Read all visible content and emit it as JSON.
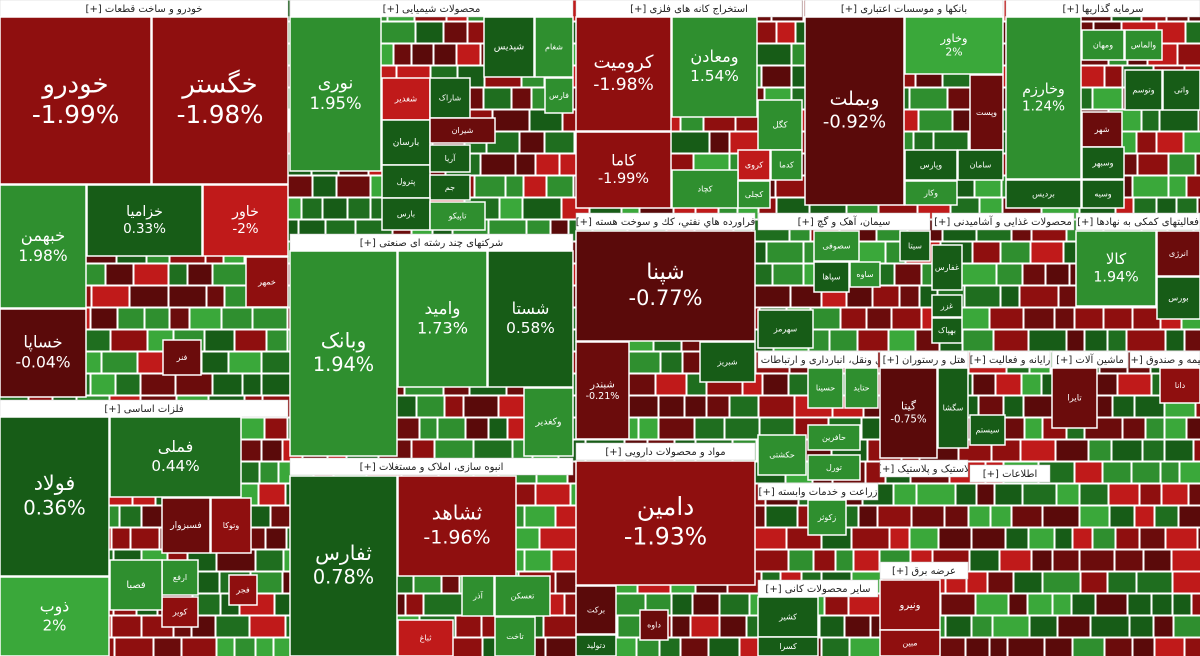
{
  "sectors": [
    {
      "title": "خودرو و ساخت قطعات [+]",
      "tiles": [
        {
          "name": "خودرو",
          "change": "-1.99%",
          "color": "#8f0f0f"
        },
        {
          "name": "خگستر",
          "change": "-1.98%",
          "color": "#8f0f0f"
        },
        {
          "name": "خبهمن",
          "change": "1.98%",
          "color": "#2f8f2f"
        },
        {
          "name": "خزامیا",
          "change": "0.33%",
          "color": "#175c17"
        },
        {
          "name": "خاور",
          "change": "-2%",
          "color": "#c01a1a"
        },
        {
          "name": "خساپا",
          "change": "-0.04%",
          "color": "#5a0a0a"
        },
        {
          "name": "خمهر",
          "color": "#8f0f0f"
        },
        {
          "name": "فنر",
          "color": "#6b0c0c"
        }
      ]
    },
    {
      "title": "فلزات اساسی [+]",
      "tiles": [
        {
          "name": "فولاد",
          "change": "0.36%",
          "color": "#175c17"
        },
        {
          "name": "فملی",
          "change": "0.44%",
          "color": "#1f6e1f"
        },
        {
          "name": "ذوب",
          "change": "2%",
          "color": "#3aa83a"
        },
        {
          "name": "فسبزوار",
          "color": "#6b0c0c"
        },
        {
          "name": "وتوکا",
          "color": "#8f0f0f"
        },
        {
          "name": "فجر",
          "color": "#8f0f0f"
        },
        {
          "name": "ارفع",
          "color": "#2f8f2f"
        },
        {
          "name": "کویر",
          "color": "#8f0f0f"
        },
        {
          "name": "فصبا",
          "color": "#2f8f2f"
        }
      ]
    },
    {
      "title": "محصولات شیمیایی [+]",
      "tiles": [
        {
          "name": "نوری",
          "change": "1.95%",
          "color": "#2f8f2f"
        },
        {
          "name": "شپدیس",
          "color": "#175c17"
        },
        {
          "name": "شغام",
          "color": "#2f8f2f"
        },
        {
          "name": "شغدیر",
          "color": "#c01a1a"
        },
        {
          "name": "شاراک",
          "color": "#175c17"
        },
        {
          "name": "فارس",
          "color": "#2f8f2f"
        },
        {
          "name": "بارسان",
          "color": "#175c17"
        },
        {
          "name": "شیران",
          "color": "#6b0c0c"
        },
        {
          "name": "پترول",
          "color": "#175c17"
        },
        {
          "name": "آریا",
          "color": "#175c17"
        },
        {
          "name": "جم",
          "color": "#175c17"
        },
        {
          "name": "بارس",
          "color": "#175c17"
        },
        {
          "name": "تاپیکو",
          "color": "#2f8f2f"
        }
      ]
    },
    {
      "title": "شرکتهای چند رشته ای صنعتی [+]",
      "tiles": [
        {
          "name": "وبانک",
          "change": "1.94%",
          "color": "#2f8f2f"
        },
        {
          "name": "وامید",
          "change": "1.73%",
          "color": "#2f8f2f"
        },
        {
          "name": "شستا",
          "change": "0.58%",
          "color": "#175c17"
        },
        {
          "name": "وکغدیر",
          "color": "#2f8f2f"
        }
      ]
    },
    {
      "title": "انبوه سازی، املاک و مستغلات [+]",
      "tiles": [
        {
          "name": "ثفارس",
          "change": "0.78%",
          "color": "#175c17"
        },
        {
          "name": "ثشاهد",
          "change": "-1.96%",
          "color": "#8f0f0f"
        },
        {
          "name": "آذر",
          "color": "#2f8f2f"
        },
        {
          "name": "تعسکن",
          "color": "#2f8f2f"
        },
        {
          "name": "تاخت",
          "color": "#2f8f2f"
        },
        {
          "name": "ثباغ",
          "color": "#c01a1a"
        }
      ]
    },
    {
      "title": "استخراج کانه های فلزی [+]",
      "tiles": [
        {
          "name": "کرومیت",
          "change": "-1.98%",
          "color": "#8f0f0f"
        },
        {
          "name": "کاما",
          "change": "-1.99%",
          "color": "#8f0f0f"
        },
        {
          "name": "ومعادن",
          "change": "1.54%",
          "color": "#2f8f2f"
        },
        {
          "name": "کگل",
          "color": "#2f8f2f"
        },
        {
          "name": "کروی",
          "color": "#c01a1a"
        },
        {
          "name": "کدما",
          "color": "#2f8f2f"
        },
        {
          "name": "کچاد",
          "color": "#2f8f2f"
        },
        {
          "name": "کجلی",
          "color": "#2f8f2f"
        }
      ]
    },
    {
      "title": "بانکها و موسسات اعتباری [+]",
      "tiles": [
        {
          "name": "وبملت",
          "change": "-0.92%",
          "color": "#5a0a0a"
        },
        {
          "name": "وخاور",
          "change": "2%",
          "color": "#3aa83a"
        },
        {
          "name": "وپست",
          "color": "#6b0c0c"
        },
        {
          "name": "وپارس",
          "color": "#175c17"
        },
        {
          "name": "سامان",
          "color": "#175c17"
        },
        {
          "name": "وکار",
          "color": "#2f8f2f"
        }
      ]
    },
    {
      "title": "سرمایه گذاریها [+]",
      "tiles": [
        {
          "name": "وخارزم",
          "change": "1.24%",
          "color": "#2f8f2f"
        },
        {
          "name": "بردیس",
          "color": "#175c17"
        },
        {
          "name": "ومهان",
          "color": "#2f8f2f"
        },
        {
          "name": "والماس",
          "color": "#2f8f2f"
        },
        {
          "name": "وتوسم",
          "color": "#175c17"
        },
        {
          "name": "واتی",
          "color": "#175c17"
        },
        {
          "name": "شهر",
          "color": "#6b0c0c"
        },
        {
          "name": "وسبهر",
          "color": "#175c17"
        },
        {
          "name": "وسیه",
          "color": "#175c17"
        }
      ]
    },
    {
      "title": "فراورده هاي نفتي، كك و سوخت هسته [+]",
      "tiles": [
        {
          "name": "شپنا",
          "change": "-0.77%",
          "color": "#5a0a0a"
        },
        {
          "name": "شبندر",
          "change": "-0.21%",
          "color": "#6b0c0c"
        },
        {
          "name": "شبریز",
          "color": "#175c17"
        }
      ]
    },
    {
      "title": "مواد و محصولات دارویی [+]",
      "tiles": [
        {
          "name": "دامین",
          "change": "-1.93%",
          "color": "#8f0f0f"
        },
        {
          "name": "برکت",
          "color": "#5a0a0a"
        },
        {
          "name": "داوه",
          "color": "#6b0c0c"
        },
        {
          "name": "دتولید",
          "color": "#175c17"
        }
      ]
    },
    {
      "title": "سیمان، آهک و گچ [+]",
      "tiles": [
        {
          "name": "سهرمز",
          "color": "#175c17"
        },
        {
          "name": "سصوفی",
          "color": "#2f8f2f"
        },
        {
          "name": "سیتا",
          "color": "#175c17"
        },
        {
          "name": "سپاها",
          "color": "#175c17"
        },
        {
          "name": "ساوه",
          "color": "#2f8f2f"
        }
      ]
    },
    {
      "title": "محصولات غذایی و آشامیدنی [+]",
      "tiles": [
        {
          "name": "غفارس",
          "color": "#175c17"
        },
        {
          "name": "غزر",
          "color": "#175c17"
        },
        {
          "name": "بهپاک",
          "color": "#175c17"
        }
      ]
    },
    {
      "title": "فعالیتهای کمکی به نهادها [+]",
      "tiles": [
        {
          "name": "کالا",
          "change": "1.94%",
          "color": "#2f8f2f"
        },
        {
          "name": "انرژی",
          "color": "#6b0c0c"
        },
        {
          "name": "بورس",
          "color": "#175c17"
        }
      ]
    },
    {
      "title": "حمل ونقل، انبارداری و ارتباطات [+]",
      "tiles": [
        {
          "name": "حسینا",
          "color": "#2f8f2f"
        },
        {
          "name": "حتاید",
          "color": "#2f8f2f"
        },
        {
          "name": "حافرین",
          "color": "#2f8f2f"
        },
        {
          "name": "حکشتی",
          "color": "#2f8f2f"
        },
        {
          "name": "تورل",
          "color": "#2f8f2f"
        }
      ]
    },
    {
      "title": "هتل و رستوران [+]",
      "tiles": [
        {
          "name": "سگشا",
          "color": "#175c17"
        },
        {
          "name": "گیتا",
          "change": "-0.75%",
          "color": "#5a0a0a"
        }
      ]
    },
    {
      "title": "رایانه و فعالیت [+]",
      "tiles": [
        {
          "name": "سیستم",
          "color": "#175c17"
        }
      ]
    },
    {
      "title": "ماشین آلات [+]",
      "tiles": [
        {
          "name": "تایرا",
          "color": "#6b0c0c"
        }
      ]
    },
    {
      "title": "بیمه و صندوق [+]",
      "tiles": [
        {
          "name": "دانا",
          "color": "#8f0f0f"
        }
      ]
    },
    {
      "title": "زراعت و خدمات وابسته [+]",
      "tiles": [
        {
          "name": "زکوثر",
          "color": "#2f8f2f"
        }
      ]
    },
    {
      "title": "سایر محصولات کانی [+]",
      "tiles": [
        {
          "name": "کشیر",
          "color": "#175c17"
        },
        {
          "name": "کسرا",
          "color": "#175c17"
        }
      ]
    },
    {
      "title": "عرضه برق [+]",
      "tiles": [
        {
          "name": "ونیرو",
          "color": "#8f0f0f"
        },
        {
          "name": "مبین",
          "color": "#8f0f0f"
        }
      ]
    },
    {
      "title": "اطلاعات [+]",
      "tiles": []
    },
    {
      "title": "لاستیک و پلاستیک [+]",
      "tiles": []
    }
  ]
}
